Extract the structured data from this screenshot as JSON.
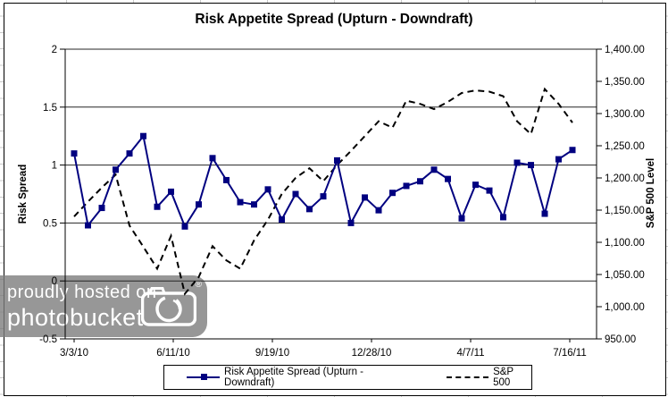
{
  "watermark": {
    "line1": "proudly hosted on",
    "line2": "photobucket",
    "registered": "®"
  },
  "colors": {
    "spread_line": "#000080",
    "sp500_line": "#000000",
    "gridline": "#262626",
    "watermark_bg": "#7d7d7d"
  },
  "chart_data": {
    "type": "line",
    "title": "Risk Appetite Spread (Upturn - Downdraft)",
    "grid": "horizontal",
    "legend_position": "bottom",
    "left_axis": {
      "label": "Risk Spread",
      "min": -0.5,
      "max": 2,
      "step": 0.5,
      "tick_labels": [
        "2",
        "1.5",
        "1",
        "0.5",
        "0",
        "-0.5"
      ]
    },
    "right_axis": {
      "label": "S&P 500 Level",
      "min": 950,
      "max": 1400,
      "step": 50,
      "tick_labels": [
        "1,400.00",
        "1,350.00",
        "1,300.00",
        "1,250.00",
        "1,200.00",
        "1,150.00",
        "1,100.00",
        "1,050.00",
        "1,000.00",
        "950.00"
      ]
    },
    "x_axis": {
      "tick_labels": [
        "3/3/10",
        "6/11/10",
        "9/19/10",
        "12/28/10",
        "4/7/11",
        "7/16/11"
      ]
    },
    "series": [
      {
        "name": "Risk Appetite Spread (Upturn - Downdraft)",
        "axis": "left",
        "line": "solid",
        "marker": "square",
        "color": "#000080",
        "values": [
          1.1,
          0.48,
          0.63,
          0.96,
          1.1,
          1.25,
          0.64,
          0.77,
          0.47,
          0.66,
          1.06,
          0.87,
          0.68,
          0.66,
          0.79,
          0.53,
          0.75,
          0.62,
          0.73,
          1.04,
          0.5,
          0.72,
          0.61,
          0.76,
          0.82,
          0.86,
          0.96,
          0.88,
          0.54,
          0.83,
          0.78,
          0.55,
          1.02,
          1.0,
          0.58,
          1.05,
          1.13
        ]
      },
      {
        "name": "S&P 500",
        "axis": "right",
        "line": "dashed",
        "marker": "none",
        "color": "#000000",
        "values": [
          1140,
          1163,
          1185,
          1205,
          1126,
          1093,
          1059,
          1110,
          1020,
          1046,
          1094,
          1072,
          1059,
          1103,
          1135,
          1175,
          1200,
          1215,
          1195,
          1220,
          1242,
          1265,
          1288,
          1278,
          1320,
          1315,
          1307,
          1318,
          1332,
          1336,
          1334,
          1327,
          1288,
          1268,
          1338,
          1315,
          1286
        ]
      }
    ]
  }
}
